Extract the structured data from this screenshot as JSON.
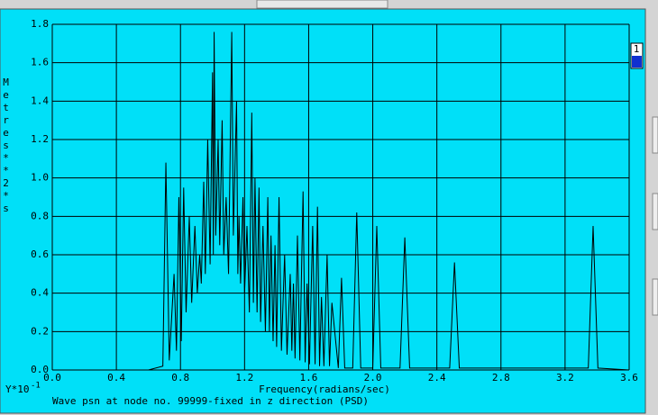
{
  "chart_data": {
    "type": "line",
    "y_label": "Metres**2*s",
    "x_label": "Frequency(radians/sec)",
    "multiplier_label": "Y*10",
    "multiplier_exponent": "-1",
    "caption": "Wave psn at node no. 99999-fixed  in z direction (PSD)",
    "xlim": [
      0,
      3.6
    ],
    "ylim": [
      0,
      1.8
    ],
    "xticks": [
      {
        "value": 0,
        "label": "0.0"
      },
      0.4,
      0.8,
      1.2,
      1.6,
      {
        "value": 2,
        "label": "2.0"
      },
      2.4,
      2.8,
      3.2,
      3.6
    ],
    "yticks": [
      {
        "value": 0,
        "label": "0.0"
      },
      0.2,
      0.4,
      0.6,
      0.8,
      {
        "value": 1,
        "label": "1.0"
      },
      1.2,
      1.4,
      1.6,
      1.8
    ],
    "grid": true,
    "legend_position": "top-right",
    "x": [
      0,
      0.6,
      0.69,
      0.709,
      0.73,
      0.76,
      0.775,
      0.79,
      0.805,
      0.82,
      0.835,
      0.855,
      0.87,
      0.89,
      0.905,
      0.92,
      0.93,
      0.945,
      0.955,
      0.97,
      0.985,
      1.0,
      1.005,
      1.01,
      1.02,
      1.035,
      1.045,
      1.06,
      1.07,
      1.085,
      1.1,
      1.12,
      1.13,
      1.15,
      1.158,
      1.165,
      1.175,
      1.19,
      1.2,
      1.215,
      1.23,
      1.245,
      1.255,
      1.265,
      1.278,
      1.29,
      1.3,
      1.315,
      1.33,
      1.345,
      1.355,
      1.365,
      1.378,
      1.39,
      1.4,
      1.415,
      1.43,
      1.45,
      1.465,
      1.485,
      1.495,
      1.505,
      1.515,
      1.53,
      1.545,
      1.565,
      1.578,
      1.59,
      1.605,
      1.625,
      1.64,
      1.655,
      1.668,
      1.68,
      1.695,
      1.715,
      1.73,
      1.745,
      1.785,
      1.805,
      1.825,
      1.875,
      1.9,
      1.925,
      2.0,
      2.025,
      2.05,
      2.17,
      2.2,
      2.23,
      2.48,
      2.51,
      2.54,
      3.345,
      3.375,
      3.405,
      3.6
    ],
    "series": [
      {
        "name": "1",
        "color": "#1030d0",
        "line_color": "#000000",
        "values": [
          0,
          0,
          0.02,
          1.08,
          0.05,
          0.5,
          0.1,
          0.9,
          0.15,
          0.95,
          0.3,
          0.8,
          0.35,
          0.75,
          0.4,
          0.6,
          0.45,
          0.98,
          0.5,
          1.2,
          0.55,
          1.55,
          0.6,
          1.76,
          0.7,
          1.2,
          0.65,
          1.3,
          0.6,
          0.9,
          0.5,
          1.76,
          0.7,
          1.4,
          0.5,
          0.8,
          0.45,
          0.9,
          0.4,
          0.75,
          0.3,
          1.34,
          0.35,
          1.0,
          0.3,
          0.95,
          0.25,
          0.75,
          0.2,
          0.9,
          0.2,
          0.7,
          0.15,
          0.65,
          0.12,
          0.9,
          0.1,
          0.6,
          0.08,
          0.5,
          0.1,
          0.45,
          0.06,
          0.7,
          0.05,
          0.93,
          0.04,
          0.45,
          0.03,
          0.75,
          0.03,
          0.85,
          0.02,
          0.38,
          0.02,
          0.6,
          0.02,
          0.35,
          0.01,
          0.48,
          0.01,
          0.01,
          0.82,
          0.01,
          0.01,
          0.75,
          0.01,
          0.01,
          0.69,
          0.01,
          0.01,
          0.56,
          0.01,
          0.01,
          0.75,
          0.01,
          0
        ]
      }
    ]
  }
}
